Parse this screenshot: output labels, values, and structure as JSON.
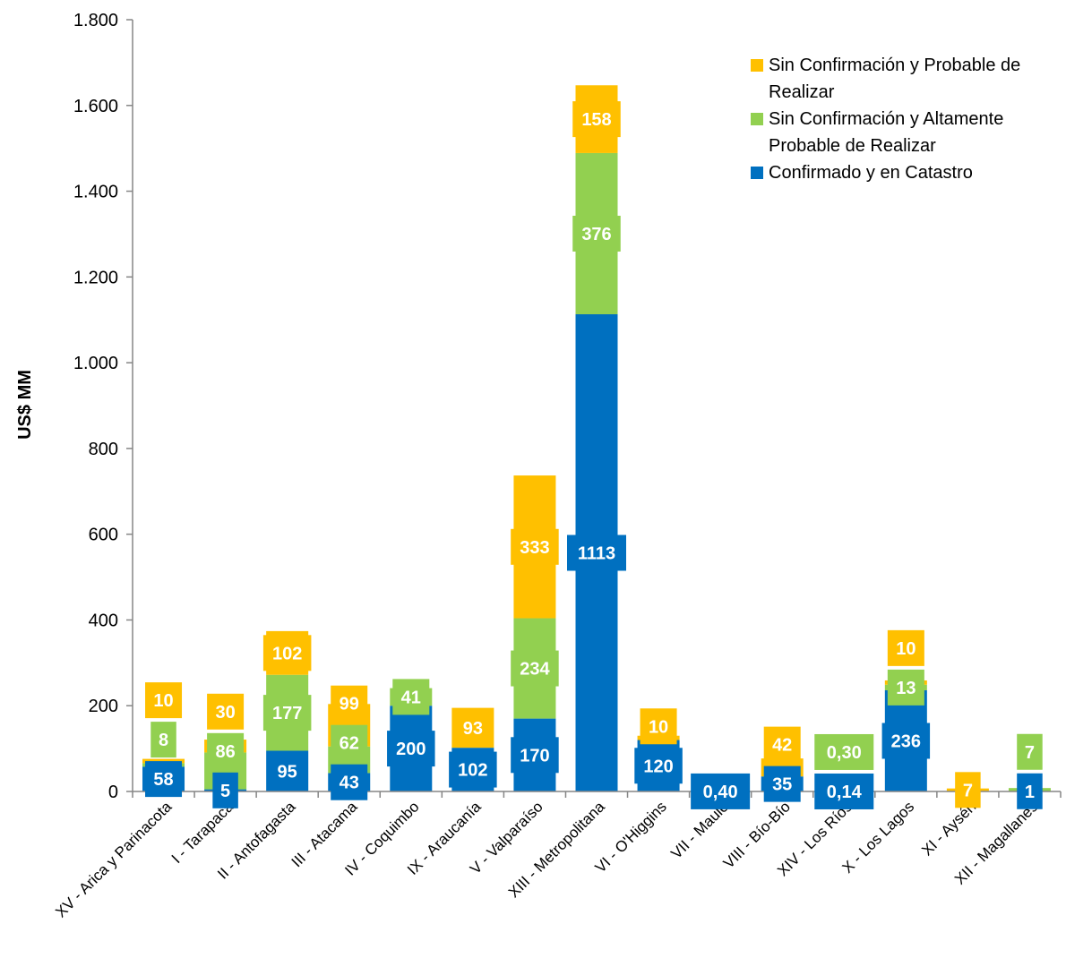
{
  "chart_data": {
    "type": "bar",
    "stacked": true,
    "ylabel": "US$ MM",
    "ylim": [
      0,
      1800
    ],
    "yticks": [
      0,
      200,
      400,
      600,
      800,
      1000,
      1200,
      1400,
      1600,
      1800
    ],
    "ytick_labels": [
      "0",
      "200",
      "400",
      "600",
      "800",
      "1.000",
      "1.200",
      "1.400",
      "1.600",
      "1.800"
    ],
    "grid": false,
    "legend_position": "top-right",
    "categories": [
      "XV - Arica y Parinacota",
      "I - Tarapacá",
      "II - Antofagasta",
      "III - Atacama",
      "IV - Coquimbo",
      "IX - Araucanía",
      "V - Valparaíso",
      "XIII - Metropolitana",
      "VI - O'Higgins",
      "VII - Maule",
      "VIII - Bío-Bío",
      "XIV - Los Ríos",
      "X - Los Lagos",
      "XI - Aysén",
      "XII - Magallanes"
    ],
    "series": [
      {
        "name": "Confirmado y en Catastro",
        "color": "#0070C0",
        "values": [
          58,
          5,
          95,
          43,
          200,
          102,
          170,
          1113,
          120,
          0.4,
          35,
          0.14,
          236,
          0,
          1
        ],
        "labels": [
          "58",
          "5",
          "95",
          "43",
          "200",
          "102",
          "170",
          "1113",
          "120",
          "0,40",
          "35",
          "0,14",
          "236",
          "",
          "1"
        ]
      },
      {
        "name": "Sin Confirmación y Altamente Probable de Realizar",
        "color": "#92D050",
        "values": [
          8,
          86,
          177,
          62,
          41,
          0,
          234,
          376,
          0,
          0,
          0,
          0.3,
          13,
          0,
          7
        ],
        "labels": [
          "8",
          "86",
          "177",
          "62",
          "41",
          "",
          "234",
          "376",
          "",
          "",
          "",
          "0,30",
          "13",
          "",
          "7"
        ]
      },
      {
        "name": "Sin Confirmación y Probable de Realizar",
        "color": "#FFC000",
        "values": [
          10,
          30,
          102,
          99,
          0,
          93,
          333,
          158,
          10,
          0,
          42,
          0,
          10,
          7,
          0
        ],
        "labels": [
          "10",
          "30",
          "102",
          "99",
          "",
          "93",
          "333",
          "158",
          "10",
          "",
          "42",
          "",
          "10",
          "7",
          ""
        ]
      }
    ]
  },
  "legend": {
    "items": [
      {
        "label": "Sin Confirmación y Probable de Realizar",
        "color": "#FFC000"
      },
      {
        "label": "Sin Confirmación y Altamente Probable de Realizar",
        "color": "#92D050"
      },
      {
        "label": "Confirmado y en Catastro",
        "color": "#0070C0"
      }
    ]
  }
}
